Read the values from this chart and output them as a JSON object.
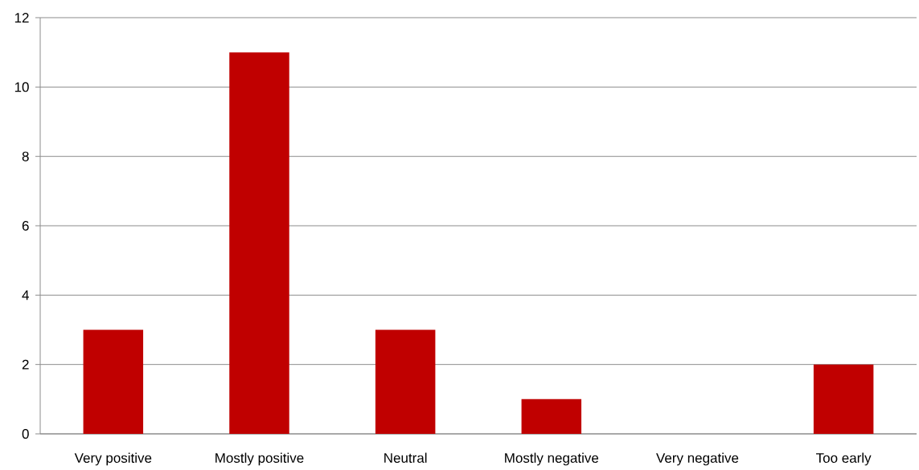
{
  "chart_data": {
    "type": "bar",
    "categories": [
      "Very positive",
      "Mostly positive",
      "Neutral",
      "Mostly negative",
      "Very negative",
      "Too early"
    ],
    "values": [
      3,
      11,
      3,
      1,
      0,
      2
    ],
    "color": "#c00000",
    "ylim": [
      0,
      12
    ],
    "yticks": [
      0,
      2,
      4,
      6,
      8,
      10,
      12
    ],
    "grid": "y"
  }
}
